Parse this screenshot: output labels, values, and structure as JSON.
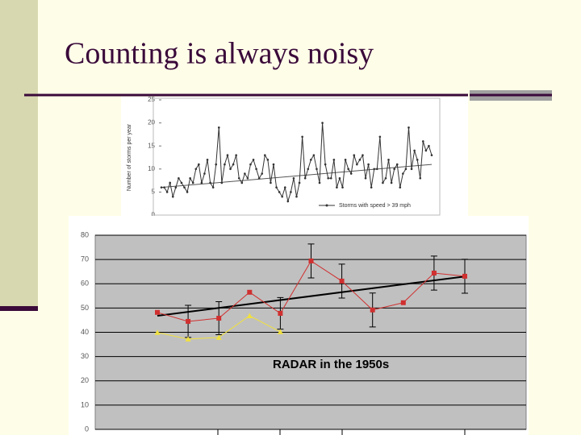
{
  "title": "Counting is always noisy",
  "chart_data": [
    {
      "type": "line",
      "ylabel": "Number of storms per year",
      "ylim": [
        0,
        25
      ],
      "yticks": [
        0,
        5,
        10,
        15,
        20,
        25
      ],
      "series": [
        {
          "name": "Storms with speed > 39 mph",
          "color": "#333333",
          "values": [
            6,
            6,
            5,
            7,
            4,
            6,
            8,
            7,
            6,
            5,
            8,
            7,
            10,
            11,
            7,
            9,
            12,
            7,
            6,
            11,
            19,
            7,
            11,
            13,
            10,
            11,
            13,
            8,
            7,
            9,
            8,
            11,
            12,
            10,
            8,
            9,
            13,
            12,
            7,
            11,
            6,
            5,
            4,
            6,
            3,
            5,
            8,
            4,
            7,
            17,
            8,
            10,
            12,
            13,
            10,
            7,
            20,
            11,
            8,
            8,
            12,
            6,
            8,
            6,
            12,
            10,
            9,
            13,
            11,
            12,
            13,
            8,
            11,
            6,
            10,
            10,
            17,
            7,
            8,
            12,
            7,
            10,
            11,
            6,
            9,
            10,
            19,
            10,
            14,
            12,
            8,
            16,
            14,
            15,
            13
          ]
        }
      ],
      "trend": [
        6,
        11
      ]
    },
    {
      "type": "line",
      "annotation": "RADAR in the 1950s",
      "ylim": [
        0,
        80
      ],
      "yticks": [
        0,
        10,
        20,
        30,
        40,
        50,
        60,
        70,
        80
      ],
      "grid": true,
      "series": [
        {
          "color": "#d03030",
          "values": [
            48.2,
            44.5,
            45.8,
            56.5,
            47.8,
            69.4,
            61.1,
            49.2,
            52.2,
            64.4,
            63.1
          ],
          "errors": [
            null,
            6.6,
            6.8,
            null,
            6.5,
            7,
            7,
            7,
            null,
            7,
            7
          ]
        },
        {
          "color": "#f0e040",
          "values": [
            39.9,
            37.2,
            37.9,
            46.8,
            40.2
          ]
        }
      ],
      "trend": [
        46.8,
        63.0
      ]
    }
  ]
}
